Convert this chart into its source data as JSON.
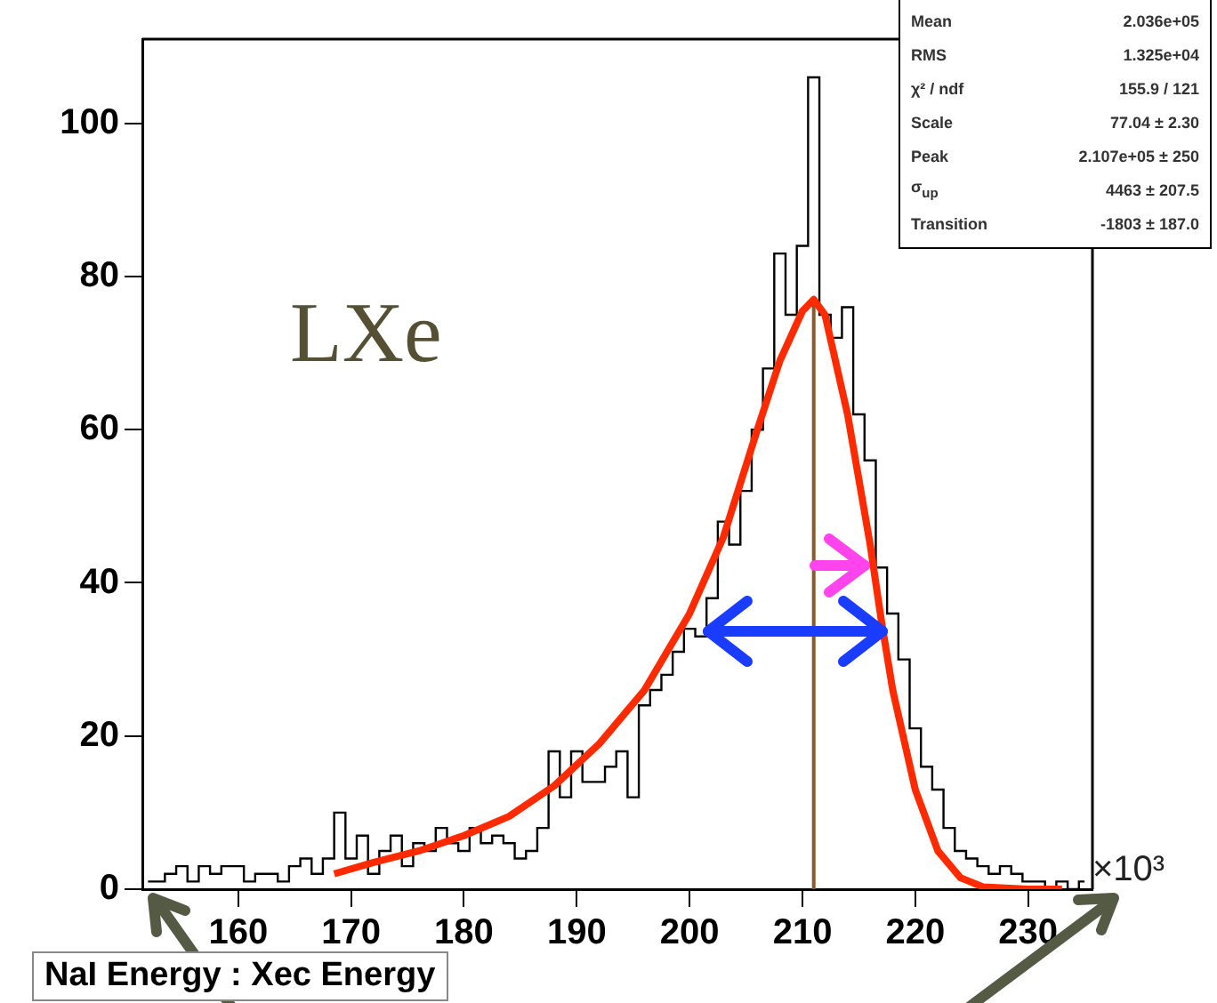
{
  "chart_data": {
    "type": "step",
    "title": "NaI Energy : Xec Energy",
    "x": [
      152,
      153,
      154,
      155,
      156,
      157,
      158,
      159,
      160,
      161,
      162,
      163,
      164,
      165,
      166,
      167,
      168,
      169,
      170,
      171,
      172,
      173,
      174,
      175,
      176,
      177,
      178,
      179,
      180,
      181,
      182,
      183,
      184,
      185,
      186,
      187,
      188,
      189,
      190,
      191,
      192,
      193,
      194,
      195,
      196,
      197,
      198,
      199,
      200,
      201,
      202,
      203,
      204,
      205,
      206,
      207,
      208,
      209,
      210,
      211,
      212,
      213,
      214,
      215,
      216,
      217,
      218,
      219,
      220,
      221,
      222,
      223,
      224,
      225,
      226,
      227,
      228,
      229,
      230,
      231,
      232,
      233,
      234,
      235
    ],
    "values": [
      1,
      1,
      2,
      3,
      1,
      3,
      2,
      3,
      3,
      1,
      2,
      2,
      1,
      3,
      4,
      2,
      4,
      10,
      4,
      7,
      2,
      5,
      7,
      3,
      6,
      5,
      8,
      6,
      5,
      8,
      6,
      7,
      6,
      4,
      5,
      8,
      18,
      12,
      18,
      14,
      14,
      16,
      18,
      12,
      24,
      26,
      28,
      31,
      34,
      33,
      38,
      48,
      45,
      52,
      60,
      68,
      83,
      75,
      84,
      106,
      75,
      72,
      76,
      62,
      56,
      42,
      36,
      30,
      21,
      16,
      13,
      8,
      5,
      4,
      3,
      2,
      3,
      2,
      1,
      1,
      0,
      1,
      0,
      1
    ],
    "color": "#000000",
    "series": [
      {
        "type": "line",
        "color": "#ff2a00",
        "x": [
          168.5,
          172,
          176,
          180,
          184,
          188,
          192,
          196,
          200,
          203,
          206,
          208,
          210,
          211,
          212,
          214,
          216,
          217,
          218,
          220,
          222,
          224,
          226,
          230,
          233
        ],
        "values": [
          2,
          3.5,
          5,
          7,
          9.5,
          13.5,
          19,
          26,
          36,
          46,
          60,
          69,
          75.5,
          77,
          75,
          62,
          45,
          35,
          26,
          13,
          5,
          1.5,
          0.3,
          0,
          0
        ]
      },
      {
        "type": "line",
        "color": "#8b5a2b",
        "x": [
          211,
          211
        ],
        "values": [
          0,
          77
        ]
      }
    ],
    "xlim": [
      151.5,
      235.7
    ],
    "ylim": [
      0,
      111
    ],
    "xticks": [
      160,
      170,
      180,
      190,
      200,
      210,
      220,
      230
    ],
    "yticks": [
      0,
      20,
      40,
      60,
      80,
      100
    ],
    "grid": false,
    "legend": false,
    "annotations": [
      "LXe",
      "×10³",
      "Mean 2.036e+05",
      "RMS 1.325e+04",
      "χ² / ndf 155.9 / 121",
      "Scale 77.04 ± 2.30",
      "Peak 2.107e+05 ± 250",
      "σ$_{up}$ 4463 ± 207.5",
      "Transition -1803 ± 187.0"
    ]
  }
}
